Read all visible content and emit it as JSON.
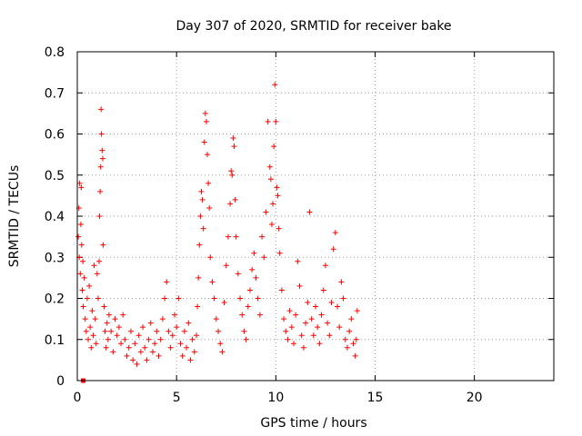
{
  "chart_data": {
    "type": "scatter",
    "title": "Day 307 of 2020, SRMTID for receiver bake",
    "xlabel": "GPS time / hours",
    "ylabel": "SRMTID / TECUs",
    "xlim": [
      0,
      24
    ],
    "ylim": [
      0,
      0.8
    ],
    "x_ticks": [
      0,
      5,
      10,
      15,
      20
    ],
    "x_tick_labels": [
      "0",
      "5",
      "10",
      "15",
      "20"
    ],
    "y_ticks": [
      0,
      0.1,
      0.2,
      0.3,
      0.4,
      0.5,
      0.6,
      0.7,
      0.8
    ],
    "y_tick_labels": [
      "0",
      "0.1",
      "0.2",
      "0.3",
      "0.4",
      "0.5",
      "0.6",
      "0.7",
      "0.8"
    ],
    "grid": true,
    "marker": "+",
    "color": "#ff0000",
    "series": [
      {
        "name": "SRMTID",
        "points": [
          [
            0.05,
            0.35
          ],
          [
            0.08,
            0.42
          ],
          [
            0.1,
            0.3
          ],
          [
            0.12,
            0.48
          ],
          [
            0.15,
            0.26
          ],
          [
            0.18,
            0.38
          ],
          [
            0.2,
            0.47
          ],
          [
            0.22,
            0.33
          ],
          [
            0.25,
            0.22
          ],
          [
            0.28,
            0.29
          ],
          [
            0.3,
            0.18
          ],
          [
            0.35,
            0.25
          ],
          [
            0.4,
            0.15
          ],
          [
            0.45,
            0.12
          ],
          [
            0.5,
            0.2
          ],
          [
            0.55,
            0.1
          ],
          [
            0.6,
            0.23
          ],
          [
            0.65,
            0.13
          ],
          [
            0.7,
            0.08
          ],
          [
            0.75,
            0.17
          ],
          [
            0.8,
            0.11
          ],
          [
            0.85,
            0.28
          ],
          [
            0.9,
            0.15
          ],
          [
            0.95,
            0.09
          ],
          [
            1.0,
            0.26
          ],
          [
            1.05,
            0.2
          ],
          [
            1.1,
            0.29
          ],
          [
            1.12,
            0.4
          ],
          [
            1.15,
            0.46
          ],
          [
            1.18,
            0.52
          ],
          [
            1.2,
            0.66
          ],
          [
            1.22,
            0.6
          ],
          [
            1.25,
            0.56
          ],
          [
            1.28,
            0.54
          ],
          [
            1.3,
            0.33
          ],
          [
            1.35,
            0.18
          ],
          [
            1.4,
            0.12
          ],
          [
            1.45,
            0.08
          ],
          [
            1.5,
            0.14
          ],
          [
            1.55,
            0.1
          ],
          [
            1.6,
            0.16
          ],
          [
            1.7,
            0.12
          ],
          [
            1.8,
            0.07
          ],
          [
            1.9,
            0.15
          ],
          [
            2.0,
            0.11
          ],
          [
            2.1,
            0.13
          ],
          [
            2.2,
            0.09
          ],
          [
            2.3,
            0.16
          ],
          [
            2.4,
            0.1
          ],
          [
            2.5,
            0.06
          ],
          [
            2.6,
            0.08
          ],
          [
            2.7,
            0.12
          ],
          [
            2.8,
            0.05
          ],
          [
            2.9,
            0.09
          ],
          [
            3.0,
            0.04
          ],
          [
            3.1,
            0.11
          ],
          [
            3.2,
            0.07
          ],
          [
            3.3,
            0.13
          ],
          [
            3.4,
            0.08
          ],
          [
            3.5,
            0.05
          ],
          [
            3.6,
            0.1
          ],
          [
            3.7,
            0.14
          ],
          [
            3.8,
            0.07
          ],
          [
            3.9,
            0.09
          ],
          [
            4.0,
            0.12
          ],
          [
            4.1,
            0.06
          ],
          [
            4.2,
            0.1
          ],
          [
            4.3,
            0.15
          ],
          [
            4.4,
            0.2
          ],
          [
            4.5,
            0.24
          ],
          [
            4.6,
            0.12
          ],
          [
            4.7,
            0.08
          ],
          [
            4.8,
            0.11
          ],
          [
            4.9,
            0.16
          ],
          [
            5.0,
            0.13
          ],
          [
            5.1,
            0.2
          ],
          [
            5.2,
            0.09
          ],
          [
            5.3,
            0.06
          ],
          [
            5.4,
            0.12
          ],
          [
            5.5,
            0.08
          ],
          [
            5.6,
            0.14
          ],
          [
            5.7,
            0.05
          ],
          [
            5.8,
            0.1
          ],
          [
            5.9,
            0.07
          ],
          [
            6.0,
            0.11
          ],
          [
            6.05,
            0.18
          ],
          [
            6.1,
            0.25
          ],
          [
            6.15,
            0.33
          ],
          [
            6.2,
            0.4
          ],
          [
            6.25,
            0.46
          ],
          [
            6.3,
            0.44
          ],
          [
            6.35,
            0.37
          ],
          [
            6.4,
            0.58
          ],
          [
            6.45,
            0.65
          ],
          [
            6.5,
            0.63
          ],
          [
            6.55,
            0.55
          ],
          [
            6.6,
            0.48
          ],
          [
            6.65,
            0.42
          ],
          [
            6.7,
            0.3
          ],
          [
            6.8,
            0.24
          ],
          [
            6.9,
            0.2
          ],
          [
            7.0,
            0.15
          ],
          [
            7.1,
            0.12
          ],
          [
            7.2,
            0.09
          ],
          [
            7.3,
            0.07
          ],
          [
            7.4,
            0.19
          ],
          [
            7.5,
            0.28
          ],
          [
            7.6,
            0.35
          ],
          [
            7.7,
            0.43
          ],
          [
            7.75,
            0.51
          ],
          [
            7.8,
            0.5
          ],
          [
            7.85,
            0.59
          ],
          [
            7.9,
            0.57
          ],
          [
            7.95,
            0.44
          ],
          [
            8.0,
            0.35
          ],
          [
            8.1,
            0.26
          ],
          [
            8.2,
            0.2
          ],
          [
            8.3,
            0.16
          ],
          [
            8.4,
            0.12
          ],
          [
            8.5,
            0.1
          ],
          [
            8.6,
            0.18
          ],
          [
            8.7,
            0.22
          ],
          [
            8.8,
            0.27
          ],
          [
            8.9,
            0.31
          ],
          [
            9.0,
            0.25
          ],
          [
            9.1,
            0.2
          ],
          [
            9.2,
            0.16
          ],
          [
            9.3,
            0.35
          ],
          [
            9.4,
            0.3
          ],
          [
            9.5,
            0.41
          ],
          [
            9.6,
            0.63
          ],
          [
            9.7,
            0.52
          ],
          [
            9.75,
            0.49
          ],
          [
            9.8,
            0.38
          ],
          [
            9.85,
            0.43
          ],
          [
            9.9,
            0.57
          ],
          [
            9.95,
            0.72
          ],
          [
            10.0,
            0.63
          ],
          [
            10.05,
            0.47
          ],
          [
            10.1,
            0.45
          ],
          [
            10.15,
            0.37
          ],
          [
            10.2,
            0.31
          ],
          [
            10.3,
            0.22
          ],
          [
            10.4,
            0.15
          ],
          [
            10.5,
            0.12
          ],
          [
            10.6,
            0.1
          ],
          [
            10.7,
            0.17
          ],
          [
            10.8,
            0.13
          ],
          [
            10.9,
            0.09
          ],
          [
            11.0,
            0.16
          ],
          [
            11.1,
            0.29
          ],
          [
            11.2,
            0.23
          ],
          [
            11.3,
            0.11
          ],
          [
            11.4,
            0.08
          ],
          [
            11.5,
            0.14
          ],
          [
            11.6,
            0.19
          ],
          [
            11.7,
            0.41
          ],
          [
            11.8,
            0.15
          ],
          [
            11.9,
            0.11
          ],
          [
            12.0,
            0.18
          ],
          [
            12.1,
            0.13
          ],
          [
            12.2,
            0.09
          ],
          [
            12.3,
            0.16
          ],
          [
            12.4,
            0.22
          ],
          [
            12.5,
            0.28
          ],
          [
            12.6,
            0.14
          ],
          [
            12.7,
            0.11
          ],
          [
            12.8,
            0.19
          ],
          [
            12.9,
            0.32
          ],
          [
            13.0,
            0.36
          ],
          [
            13.1,
            0.18
          ],
          [
            13.2,
            0.13
          ],
          [
            13.3,
            0.24
          ],
          [
            13.4,
            0.2
          ],
          [
            13.5,
            0.1
          ],
          [
            13.6,
            0.08
          ],
          [
            13.7,
            0.12
          ],
          [
            13.8,
            0.15
          ],
          [
            13.9,
            0.09
          ],
          [
            14.0,
            0.06
          ],
          [
            14.05,
            0.1
          ],
          [
            14.1,
            0.17
          ]
        ]
      }
    ]
  }
}
